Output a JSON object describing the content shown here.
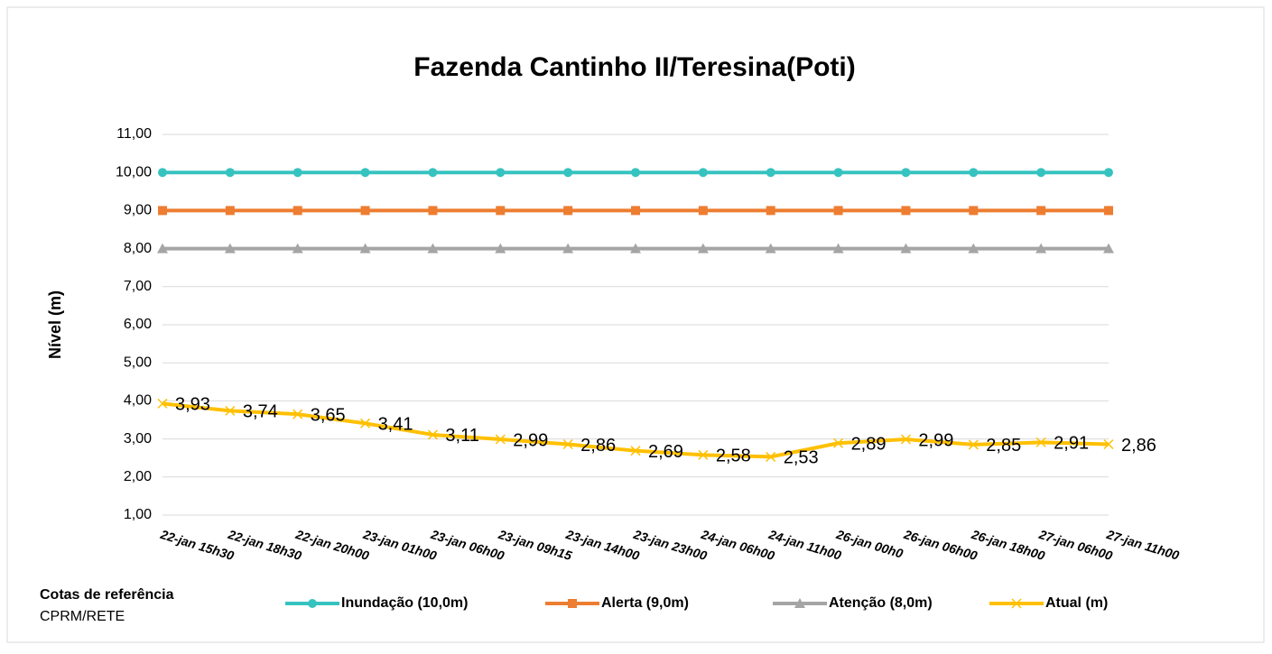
{
  "chart_data": {
    "type": "line",
    "title": "Fazenda Cantinho II/Teresina(Poti)",
    "y_label": "Nível (m)",
    "footnote_title": "Cotas de referência",
    "footnote_source": "CPRM/RETE",
    "categories": [
      "22-jan 15h30",
      "22-jan 18h30",
      "22-jan 20h00",
      "23-jan 01h00",
      "23-jan 06h00",
      "23-jan 09h15",
      "23-jan 14h00",
      "23-jan 23h00",
      "24-jan 06h00",
      "24-jan 11h00",
      "26-jan 00h0",
      "26-jan 06h00",
      "26-jan 18h00",
      "27-jan 06h00",
      "27-jan 11h00"
    ],
    "series": [
      {
        "name": "Inundação (10,0m)",
        "color": "#36c3c0",
        "marker": "circle",
        "values": [
          10,
          10,
          10,
          10,
          10,
          10,
          10,
          10,
          10,
          10,
          10,
          10,
          10,
          10,
          10
        ]
      },
      {
        "name": "Alerta (9,0m)",
        "color": "#ed7d31",
        "marker": "square",
        "values": [
          9,
          9,
          9,
          9,
          9,
          9,
          9,
          9,
          9,
          9,
          9,
          9,
          9,
          9,
          9
        ]
      },
      {
        "name": "Atenção (8,0m)",
        "color": "#a5a5a5",
        "marker": "triangle",
        "values": [
          8,
          8,
          8,
          8,
          8,
          8,
          8,
          8,
          8,
          8,
          8,
          8,
          8,
          8,
          8
        ]
      },
      {
        "name": "Atual (m)",
        "color": "#ffc000",
        "marker": "x",
        "values": [
          3.93,
          3.74,
          3.65,
          3.41,
          3.11,
          2.99,
          2.86,
          2.69,
          2.58,
          2.53,
          2.89,
          2.99,
          2.85,
          2.91,
          2.86
        ],
        "value_labels": [
          "3,93",
          "3,74",
          "3,65",
          "3,41",
          "3,11",
          "2,99",
          "2,86",
          "2,69",
          "2,58",
          "2,53",
          "2,89",
          "2,99",
          "2,85",
          "2,91",
          "2,86"
        ]
      }
    ],
    "ylim": [
      1,
      11
    ],
    "yticks": [
      {
        "value": 1,
        "label": "1,00"
      },
      {
        "value": 2,
        "label": "2,00"
      },
      {
        "value": 3,
        "label": "3,00"
      },
      {
        "value": 4,
        "label": "4,00"
      },
      {
        "value": 5,
        "label": "5,00"
      },
      {
        "value": 6,
        "label": "6,00"
      },
      {
        "value": 7,
        "label": "7,00"
      },
      {
        "value": 8,
        "label": "8,00"
      },
      {
        "value": 9,
        "label": "9,00"
      },
      {
        "value": 10,
        "label": "10,00"
      },
      {
        "value": 11,
        "label": "11,00"
      }
    ],
    "grid": true
  }
}
